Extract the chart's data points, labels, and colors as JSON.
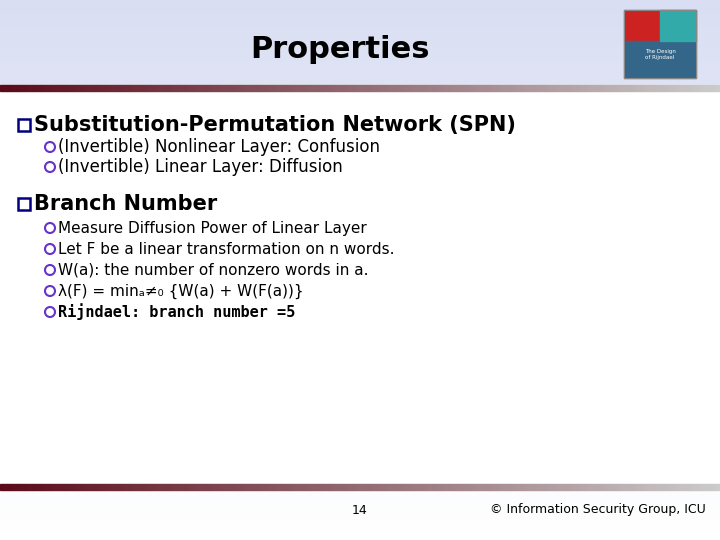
{
  "title": "Properties",
  "title_fontsize": 22,
  "title_color": "#000000",
  "bg_lavender": [
    0.85,
    0.87,
    0.95
  ],
  "bg_white": [
    1.0,
    1.0,
    1.0
  ],
  "header_bar_color": "#6b1a2a",
  "footer_bar_color": "#6b1a2a",
  "bullet1_text": "Substitution-Permutation Network (SPN)",
  "bullet1_fontsize": 15,
  "sub1_1": "(Invertible) Nonlinear Layer: Confusion",
  "sub1_2": "(Invertible) Linear Layer: Diffusion",
  "sub1_fontsize": 12,
  "bullet2_text": "Branch Number",
  "bullet2_fontsize": 15,
  "sub2_1": "Measure Diffusion Power of Linear Layer",
  "sub2_2": "Let F be a linear transformation on n words.",
  "sub2_3": "W(a): the number of nonzero words in a.",
  "sub2_4": "λ(F) = minₐ≠₀ {W(a) + W(F(a))}",
  "sub2_5": "Rijndael: branch number =5",
  "sub2_fontsize": 11,
  "footer_page": "14",
  "footer_right": "© Information Security Group, ICU",
  "footer_fontsize": 9,
  "checkbox_color": "#000080",
  "circle_color": "#6633cc",
  "bar_gradient_left": "#5a0a18",
  "bar_gradient_right": "#cccccc"
}
